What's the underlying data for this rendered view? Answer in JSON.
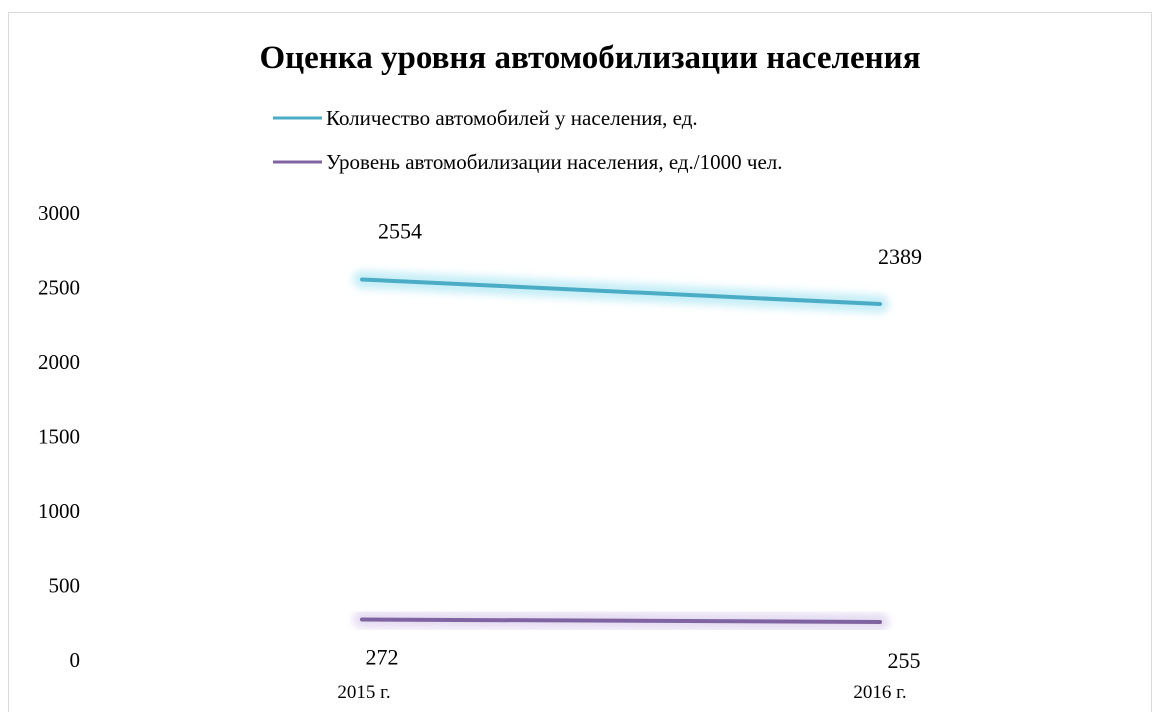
{
  "chart_data": {
    "type": "line",
    "title": "Оценка уровня автомобилизации населения",
    "xlabel": "",
    "ylabel": "",
    "categories": [
      "2015 г.",
      "2016 г."
    ],
    "ylim": [
      0,
      3000
    ],
    "yticks": [
      "0",
      "500",
      "1000",
      "1500",
      "2000",
      "2500",
      "3000"
    ],
    "grid": false,
    "legend_position": "top",
    "series": [
      {
        "name": "Количество автомобилей у населения, ед.",
        "values": [
          2554,
          2389
        ],
        "labels": [
          "2554",
          "2389"
        ],
        "color": "#4bacc6",
        "glow": "#c6eef7"
      },
      {
        "name": "Уровень автомобилизации населения, ед./1000 чел.",
        "values": [
          272,
          255
        ],
        "labels": [
          "272",
          "255"
        ],
        "color": "#8064a2",
        "glow": "#e5ddf2"
      }
    ]
  }
}
